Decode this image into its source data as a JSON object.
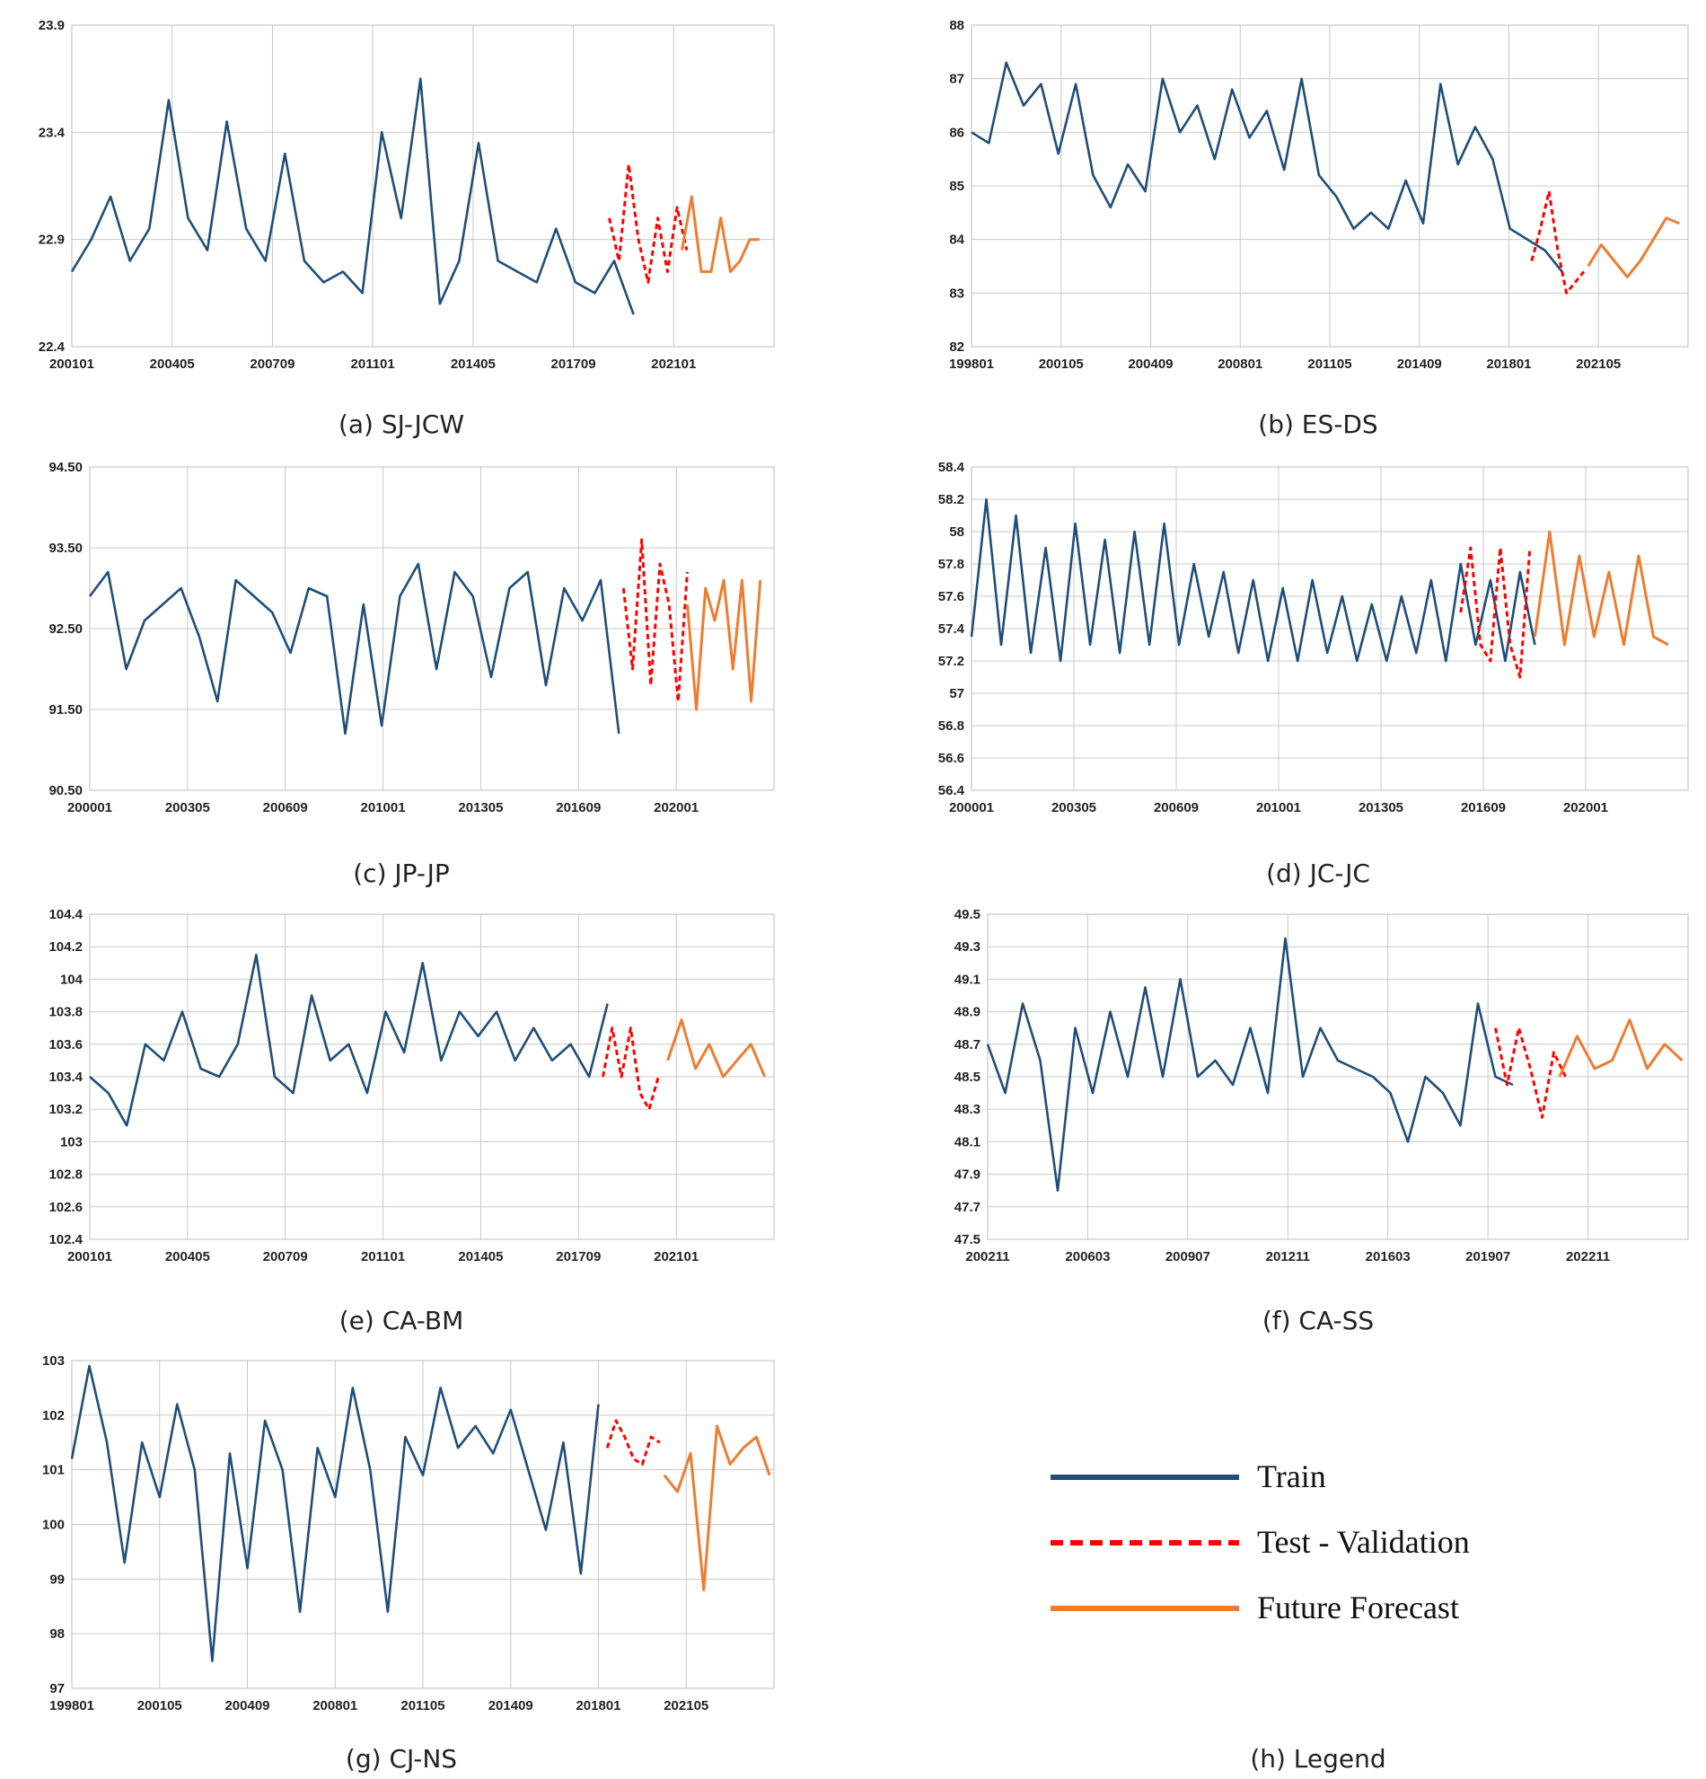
{
  "colors": {
    "train": "#1f4e79",
    "test": "#ff0000",
    "forecast": "#ed7d31"
  },
  "legend": {
    "caption": "(h) Legend",
    "items": [
      {
        "label": "Train",
        "style": "solid",
        "color": "#1f4e79"
      },
      {
        "label": "Test - Validation",
        "style": "dashed",
        "color": "#ff0000"
      },
      {
        "label": "Future Forecast",
        "style": "solid",
        "color": "#ed7d31"
      }
    ]
  },
  "chart_data": [
    {
      "id": "a",
      "type": "line",
      "caption": "(a) SJ-JCW",
      "ylim": [
        22.4,
        23.9
      ],
      "yticks": [
        "23.9",
        "23.4",
        "22.9",
        "22.4"
      ],
      "xticks": [
        "200101",
        "200405",
        "200709",
        "201101",
        "201405",
        "201709",
        "202101"
      ],
      "series": [
        {
          "name": "Train",
          "x": [
            0,
            8,
            16,
            24,
            32,
            40,
            48,
            56,
            64,
            72,
            80,
            88,
            96,
            104,
            112,
            120,
            128,
            136,
            144,
            152,
            160,
            168,
            176,
            184,
            192,
            200,
            208,
            216,
            224,
            232
          ],
          "values": [
            22.75,
            22.9,
            23.1,
            22.8,
            22.95,
            23.55,
            23.0,
            22.85,
            23.45,
            22.95,
            22.8,
            23.3,
            22.8,
            22.7,
            22.75,
            22.65,
            23.4,
            23.0,
            23.65,
            22.6,
            22.8,
            23.35,
            22.8,
            22.75,
            22.7,
            22.95,
            22.7,
            22.65,
            22.8,
            22.55
          ]
        },
        {
          "name": "Test - Validation",
          "x": [
            222,
            226,
            230,
            234,
            238,
            242,
            246,
            250,
            254
          ],
          "values": [
            23.0,
            22.8,
            23.25,
            22.9,
            22.7,
            23.0,
            22.75,
            23.05,
            22.85
          ]
        },
        {
          "name": "Future Forecast",
          "x": [
            252,
            256,
            260,
            264,
            268,
            272,
            276,
            280,
            284
          ],
          "values": [
            22.85,
            23.1,
            22.75,
            22.75,
            23.0,
            22.75,
            22.8,
            22.9,
            22.9
          ]
        }
      ],
      "xrange": [
        0,
        290
      ]
    },
    {
      "id": "b",
      "type": "line",
      "caption": "(b) ES-DS",
      "ylim": [
        82,
        88
      ],
      "yticks": [
        "88",
        "87",
        "86",
        "85",
        "84",
        "83",
        "82"
      ],
      "xticks": [
        "199801",
        "200105",
        "200409",
        "200801",
        "201105",
        "201409",
        "201801",
        "202105"
      ],
      "series": [
        {
          "name": "Train",
          "x": [
            0,
            8,
            16,
            24,
            32,
            40,
            48,
            56,
            64,
            72,
            80,
            88,
            96,
            104,
            112,
            120,
            128,
            136,
            144,
            152,
            160,
            168,
            176,
            184,
            192,
            200,
            208,
            216,
            224,
            232,
            240,
            248,
            256,
            264,
            272
          ],
          "values": [
            86.0,
            85.8,
            87.3,
            86.5,
            86.9,
            85.6,
            86.9,
            85.2,
            84.6,
            85.4,
            84.9,
            87.0,
            86.0,
            86.5,
            85.5,
            86.8,
            85.9,
            86.4,
            85.3,
            87.0,
            85.2,
            84.8,
            84.2,
            84.5,
            84.2,
            85.1,
            84.3,
            86.9,
            85.4,
            86.1,
            85.5,
            84.2,
            84.0,
            83.8,
            83.4
          ]
        },
        {
          "name": "Test - Validation",
          "x": [
            258,
            262,
            266,
            270,
            274,
            278,
            282
          ],
          "values": [
            83.6,
            84.2,
            84.9,
            83.8,
            83.0,
            83.2,
            83.4
          ]
        },
        {
          "name": "Future Forecast",
          "x": [
            284,
            290,
            296,
            302,
            308,
            314,
            320,
            326
          ],
          "values": [
            83.5,
            83.9,
            83.6,
            83.3,
            83.6,
            84.0,
            84.4,
            84.3
          ]
        }
      ],
      "xrange": [
        0,
        330
      ]
    },
    {
      "id": "c",
      "type": "line",
      "caption": "(c) JP-JP",
      "ylim": [
        90.5,
        94.5
      ],
      "yticks": [
        "94.50",
        "93.50",
        "92.50",
        "91.50",
        "90.50"
      ],
      "xticks": [
        "200001",
        "200305",
        "200609",
        "201001",
        "201305",
        "201609",
        "202001"
      ],
      "series": [
        {
          "name": "Train",
          "x": [
            0,
            8,
            16,
            24,
            32,
            40,
            48,
            56,
            64,
            72,
            80,
            88,
            96,
            104,
            112,
            120,
            128,
            136,
            144,
            152,
            160,
            168,
            176,
            184,
            192,
            200,
            208,
            216,
            224,
            232
          ],
          "values": [
            92.9,
            93.2,
            92.0,
            92.6,
            92.8,
            93.0,
            92.4,
            91.6,
            93.1,
            92.9,
            92.7,
            92.2,
            93.0,
            92.9,
            91.2,
            92.8,
            91.3,
            92.9,
            93.3,
            92.0,
            93.2,
            92.9,
            91.9,
            93.0,
            93.2,
            91.8,
            93.0,
            92.6,
            93.1,
            91.2
          ]
        },
        {
          "name": "Test - Validation",
          "x": [
            234,
            238,
            242,
            246,
            250,
            254,
            258,
            262
          ],
          "values": [
            93.0,
            92.0,
            93.6,
            91.8,
            93.3,
            92.8,
            91.6,
            93.2
          ]
        },
        {
          "name": "Future Forecast",
          "x": [
            262,
            266,
            270,
            274,
            278,
            282,
            286,
            290,
            294
          ],
          "values": [
            92.8,
            91.5,
            93.0,
            92.6,
            93.1,
            92.0,
            93.1,
            91.6,
            93.1
          ]
        }
      ],
      "xrange": [
        0,
        300
      ]
    },
    {
      "id": "d",
      "type": "line",
      "caption": "(d) JC-JC",
      "ylim": [
        56.4,
        58.4
      ],
      "yticks": [
        "58.4",
        "58.2",
        "58",
        "57.8",
        "57.6",
        "57.4",
        "57.2",
        "57",
        "56.8",
        "56.6",
        "56.4"
      ],
      "xticks": [
        "200001",
        "200305",
        "200609",
        "201001",
        "201305",
        "201609",
        "202001"
      ],
      "series": [
        {
          "name": "Train",
          "x": [
            0,
            6,
            12,
            18,
            24,
            30,
            36,
            42,
            48,
            54,
            60,
            66,
            72,
            78,
            84,
            90,
            96,
            102,
            108,
            114,
            120,
            126,
            132,
            138,
            144,
            150,
            156,
            162,
            168,
            174,
            180,
            186,
            192,
            198,
            204,
            210,
            216,
            222,
            228
          ],
          "values": [
            57.35,
            58.2,
            57.3,
            58.1,
            57.25,
            57.9,
            57.2,
            58.05,
            57.3,
            57.95,
            57.25,
            58.0,
            57.3,
            58.05,
            57.3,
            57.8,
            57.35,
            57.75,
            57.25,
            57.7,
            57.2,
            57.65,
            57.2,
            57.7,
            57.25,
            57.6,
            57.2,
            57.55,
            57.2,
            57.6,
            57.25,
            57.7,
            57.2,
            57.8,
            57.3,
            57.7,
            57.2,
            57.75,
            57.3
          ]
        },
        {
          "name": "Test - Validation",
          "x": [
            198,
            202,
            206,
            210,
            214,
            218,
            222,
            226
          ],
          "values": [
            57.5,
            57.9,
            57.3,
            57.2,
            57.9,
            57.3,
            57.1,
            57.9
          ]
        },
        {
          "name": "Future Forecast",
          "x": [
            228,
            234,
            240,
            246,
            252,
            258,
            264,
            270,
            276,
            282
          ],
          "values": [
            57.35,
            58.0,
            57.3,
            57.85,
            57.35,
            57.75,
            57.3,
            57.85,
            57.35,
            57.3
          ]
        }
      ],
      "xrange": [
        0,
        290
      ]
    },
    {
      "id": "e",
      "type": "line",
      "caption": "(e) CA-BM",
      "ylim": [
        102.4,
        104.4
      ],
      "yticks": [
        "104.4",
        "104.2",
        "104",
        "103.8",
        "103.6",
        "103.4",
        "103.2",
        "103",
        "102.8",
        "102.6",
        "102.4"
      ],
      "xticks": [
        "200101",
        "200405",
        "200709",
        "201101",
        "201405",
        "201709",
        "202101"
      ],
      "series": [
        {
          "name": "Train",
          "x": [
            0,
            8,
            16,
            24,
            32,
            40,
            48,
            56,
            64,
            72,
            80,
            88,
            96,
            104,
            112,
            120,
            128,
            136,
            144,
            152,
            160,
            168,
            176,
            184,
            192,
            200,
            208,
            216,
            224
          ],
          "values": [
            103.4,
            103.3,
            103.1,
            103.6,
            103.5,
            103.8,
            103.45,
            103.4,
            103.6,
            104.15,
            103.4,
            103.3,
            103.9,
            103.5,
            103.6,
            103.3,
            103.8,
            103.55,
            104.1,
            103.5,
            103.8,
            103.65,
            103.8,
            103.5,
            103.7,
            103.5,
            103.6,
            103.4,
            103.85
          ]
        },
        {
          "name": "Test - Validation",
          "x": [
            222,
            226,
            230,
            234,
            238,
            242,
            246
          ],
          "values": [
            103.4,
            103.7,
            103.4,
            103.7,
            103.3,
            103.2,
            103.4
          ]
        },
        {
          "name": "Future Forecast",
          "x": [
            250,
            256,
            262,
            268,
            274,
            280,
            286,
            292
          ],
          "values": [
            103.5,
            103.75,
            103.45,
            103.6,
            103.4,
            103.5,
            103.6,
            103.4
          ]
        }
      ],
      "xrange": [
        0,
        296
      ]
    },
    {
      "id": "f",
      "type": "line",
      "caption": "(f) CA-SS",
      "ylim": [
        47.5,
        49.5
      ],
      "yticks": [
        "49.5",
        "49.3",
        "49.1",
        "48.9",
        "48.7",
        "48.5",
        "48.3",
        "48.1",
        "47.9",
        "47.7",
        "47.5"
      ],
      "xticks": [
        "200211",
        "200603",
        "200907",
        "201211",
        "201603",
        "201907",
        "202211"
      ],
      "series": [
        {
          "name": "Train",
          "x": [
            0,
            6,
            12,
            18,
            24,
            30,
            36,
            42,
            48,
            54,
            60,
            66,
            72,
            78,
            84,
            90,
            96,
            102,
            108,
            114,
            120,
            126,
            132,
            138,
            144,
            150,
            156,
            162,
            168,
            174,
            180
          ],
          "values": [
            48.7,
            48.4,
            48.95,
            48.6,
            47.8,
            48.8,
            48.4,
            48.9,
            48.5,
            49.05,
            48.5,
            49.1,
            48.5,
            48.6,
            48.45,
            48.8,
            48.4,
            49.35,
            48.5,
            48.8,
            48.6,
            48.55,
            48.5,
            48.4,
            48.1,
            48.5,
            48.4,
            48.2,
            48.95,
            48.5,
            48.45
          ]
        },
        {
          "name": "Test - Validation",
          "x": [
            174,
            178,
            182,
            186,
            190,
            194,
            198
          ],
          "values": [
            48.8,
            48.45,
            48.8,
            48.55,
            48.25,
            48.65,
            48.5
          ]
        },
        {
          "name": "Future Forecast",
          "x": [
            196,
            202,
            208,
            214,
            220,
            226,
            232,
            238
          ],
          "values": [
            48.5,
            48.75,
            48.55,
            48.6,
            48.85,
            48.55,
            48.7,
            48.6
          ]
        }
      ],
      "xrange": [
        0,
        240
      ]
    },
    {
      "id": "g",
      "type": "line",
      "caption": "(g) CJ-NS",
      "ylim": [
        97,
        103
      ],
      "yticks": [
        "103",
        "102",
        "101",
        "100",
        "99",
        "98",
        "97"
      ],
      "xticks": [
        "199801",
        "200105",
        "200409",
        "200801",
        "201105",
        "201409",
        "201801",
        "202105"
      ],
      "series": [
        {
          "name": "Train",
          "x": [
            0,
            8,
            16,
            24,
            32,
            40,
            48,
            56,
            64,
            72,
            80,
            88,
            96,
            104,
            112,
            120,
            128,
            136,
            144,
            152,
            160,
            168,
            176,
            184,
            192,
            200,
            208,
            216,
            224,
            232,
            240
          ],
          "values": [
            101.2,
            102.9,
            101.5,
            99.3,
            101.5,
            100.5,
            102.2,
            101.0,
            97.5,
            101.3,
            99.2,
            101.9,
            101.0,
            98.4,
            101.4,
            100.5,
            102.5,
            101.0,
            98.4,
            101.6,
            100.9,
            102.5,
            101.4,
            101.8,
            101.3,
            102.1,
            101.0,
            99.9,
            101.5,
            99.1,
            102.2
          ]
        },
        {
          "name": "Test - Validation",
          "x": [
            244,
            248,
            252,
            256,
            260,
            264,
            268
          ],
          "values": [
            101.4,
            101.9,
            101.6,
            101.2,
            101.1,
            101.6,
            101.5
          ]
        },
        {
          "name": "Future Forecast",
          "x": [
            270,
            276,
            282,
            288,
            294,
            300,
            306,
            312,
            318
          ],
          "values": [
            100.9,
            100.6,
            101.3,
            98.8,
            101.8,
            101.1,
            101.4,
            101.6,
            100.9
          ]
        }
      ],
      "xrange": [
        0,
        320
      ]
    }
  ]
}
